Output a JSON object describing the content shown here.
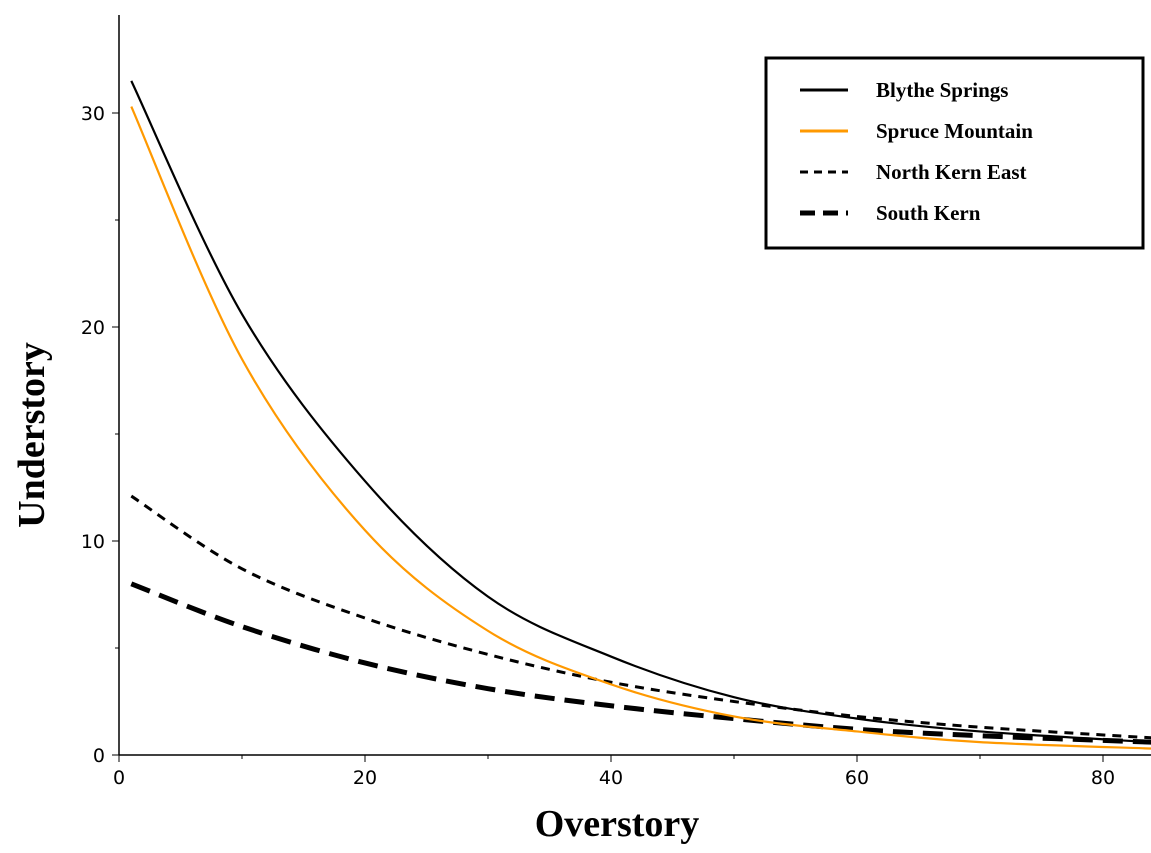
{
  "chart_data": {
    "type": "line",
    "title": "",
    "xlabel": "Overstory",
    "ylabel": "Understory",
    "xlim": [
      0,
      84
    ],
    "ylim": [
      0,
      34
    ],
    "x_ticks": [
      0,
      20,
      40,
      60,
      80
    ],
    "x_tick_labels": [
      "0",
      "20",
      "40",
      "60",
      "80"
    ],
    "y_ticks": [
      0,
      10,
      20,
      30
    ],
    "y_tick_labels": [
      "0",
      "10",
      "20",
      "30"
    ],
    "grid": false,
    "legend_position": "top-right",
    "x": [
      1,
      10,
      20,
      30,
      40,
      50,
      60,
      70,
      84
    ],
    "series": [
      {
        "name": "Blythe Springs",
        "color": "#000000",
        "style": "solid",
        "values": [
          31.5,
          20.6,
          12.8,
          7.4,
          4.6,
          2.7,
          1.7,
          1.1,
          0.6
        ]
      },
      {
        "name": "Spruce Mountain",
        "color": "#ff9900",
        "style": "solid",
        "values": [
          30.3,
          18.5,
          10.5,
          5.8,
          3.3,
          1.8,
          1.1,
          0.6,
          0.3
        ]
      },
      {
        "name": "North Kern East",
        "color": "#000000",
        "style": "short-dash",
        "values": [
          12.1,
          8.7,
          6.4,
          4.7,
          3.4,
          2.5,
          1.8,
          1.3,
          0.8
        ]
      },
      {
        "name": "South Kern",
        "color": "#000000",
        "style": "long-dash",
        "values": [
          8.0,
          6.0,
          4.3,
          3.1,
          2.3,
          1.7,
          1.2,
          0.9,
          0.6
        ]
      }
    ]
  }
}
